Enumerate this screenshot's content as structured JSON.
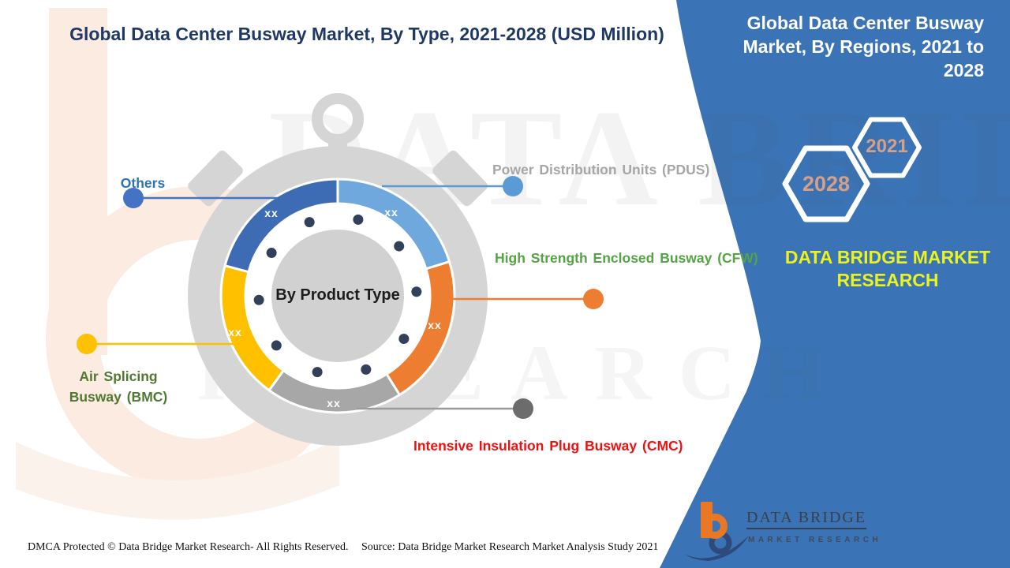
{
  "page": {
    "footer_left": "DMCA Protected © Data Bridge Market Research- All Rights Reserved.",
    "footer_source": "Source: Data Bridge Market Research Market Analysis Study 2021"
  },
  "right_panel": {
    "title": "Global Data Center Busway Market, By Regions, 2021 to 2028",
    "background_color": "#3A74B6",
    "hexagons": [
      {
        "label": "2028"
      },
      {
        "label": "2021"
      }
    ],
    "year_color": "#D5A088",
    "brand_text": "DATA BRIDGE MARKET RESEARCH",
    "brand_color": "#EAF21F"
  },
  "logo": {
    "line1": "DATA BRIDGE",
    "line2": "MARKET RESEARCH"
  },
  "watermark": {
    "line1": "DATA BRIDGE",
    "line2": "RESEARCH"
  },
  "chart_data": {
    "type": "pie",
    "variant": "donut styled as stopwatch",
    "title": "Global Data Center Busway Market, By Type, 2021-2028 (USD Million)",
    "center_label": "By Product Type",
    "values_note": "all segment values are masked as xx in the source image",
    "tick_dots": {
      "count": 10,
      "color": "#33405C"
    },
    "segments": [
      {
        "key": "pdus",
        "label": "Power Distribution Units (PDUS)",
        "value": "xx",
        "start_angle": 0,
        "end_angle": 73,
        "color": "#6FA8DC",
        "label_color": "#A6A6A6",
        "dot_color": "#5B9BD5",
        "line_color": "#5B9BD5"
      },
      {
        "key": "cfw",
        "label": "High Strength Enclosed Busway (CFW)",
        "value": "xx",
        "start_angle": 73,
        "end_angle": 148,
        "color": "#ED7D31",
        "label_color": "#54A345",
        "dot_color": "#ED7D31",
        "line_color": "#ED7D31"
      },
      {
        "key": "cmc",
        "label": "Intensive Insulation Plug Busway (CMC)",
        "value": "xx",
        "start_angle": 148,
        "end_angle": 216,
        "color": "#A7A7A7",
        "label_color": "#EE1111",
        "dot_color": "#6C6C6C",
        "line_color": "#9B9B9B"
      },
      {
        "key": "bmc",
        "label": "Air Splicing Busway (BMC)",
        "value": "xx",
        "start_angle": 216,
        "end_angle": 285,
        "color": "#FFC000",
        "label_color": "#507832",
        "dot_color": "#FFC000",
        "line_color": "#FFC000"
      },
      {
        "key": "others",
        "label": "Others",
        "value": "xx",
        "start_angle": 285,
        "end_angle": 360,
        "color": "#3D6CB4",
        "label_color": "#2E74B5",
        "dot_color": "#4472C4",
        "line_color": "#4472C4"
      }
    ]
  }
}
